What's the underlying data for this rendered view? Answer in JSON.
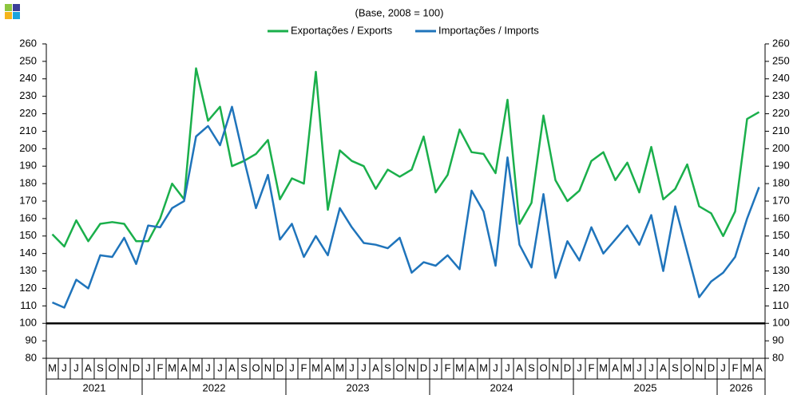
{
  "chart_data": {
    "type": "line",
    "subtitle": "(Base, 2008 = 100)",
    "categories": [
      "M",
      "J",
      "J",
      "A",
      "S",
      "O",
      "N",
      "D",
      "J",
      "F",
      "M",
      "A",
      "M",
      "J",
      "J",
      "A",
      "S",
      "O",
      "N",
      "D",
      "J",
      "F",
      "M",
      "A",
      "M",
      "J",
      "J",
      "A",
      "S",
      "O",
      "N",
      "D",
      "J",
      "F",
      "M",
      "A",
      "M",
      "J",
      "J",
      "A",
      "S",
      "O",
      "N",
      "D",
      "J",
      "F",
      "M",
      "A",
      "M",
      "J",
      "J",
      "A",
      "S",
      "O",
      "N",
      "D",
      "J",
      "F",
      "M",
      "A"
    ],
    "year_groups": [
      {
        "label": "2021",
        "months": 8
      },
      {
        "label": "2022",
        "months": 12
      },
      {
        "label": "2023",
        "months": 12
      },
      {
        "label": "2024",
        "months": 12
      },
      {
        "label": "2025",
        "months": 12
      },
      {
        "label": "2026",
        "months": 4
      }
    ],
    "series": [
      {
        "name": "Exportações / Exports",
        "color": "#1aaf4b",
        "values": [
          151,
          144,
          159,
          147,
          157,
          158,
          157,
          147,
          147,
          160,
          180,
          171,
          246,
          216,
          224,
          190,
          193,
          197,
          205,
          171,
          183,
          180,
          244,
          165,
          199,
          193,
          190,
          177,
          188,
          184,
          188,
          207,
          175,
          185,
          211,
          198,
          197,
          186,
          228,
          157,
          169,
          219,
          182,
          170,
          176,
          193,
          198,
          182,
          192,
          175,
          201,
          171,
          177,
          191,
          167,
          163,
          150,
          164,
          217,
          221
        ]
      },
      {
        "name": "Importações / Imports",
        "color": "#1f74bb",
        "values": [
          112,
          109,
          125,
          120,
          139,
          138,
          149,
          134,
          156,
          155,
          166,
          170,
          207,
          213,
          202,
          224,
          194,
          166,
          185,
          148,
          157,
          138,
          150,
          139,
          166,
          155,
          146,
          145,
          143,
          149,
          129,
          135,
          133,
          139,
          131,
          176,
          164,
          133,
          195,
          145,
          132,
          174,
          126,
          147,
          136,
          155,
          140,
          148,
          156,
          145,
          162,
          130,
          167,
          141,
          115,
          124,
          129,
          138,
          160,
          178
        ]
      }
    ],
    "reference_line": {
      "value": 100,
      "color": "#000000"
    },
    "ylim": [
      80,
      260
    ],
    "yticks": [
      80,
      90,
      100,
      110,
      120,
      130,
      140,
      150,
      160,
      170,
      180,
      190,
      200,
      210,
      220,
      230,
      240,
      250,
      260
    ],
    "legend": "top"
  }
}
